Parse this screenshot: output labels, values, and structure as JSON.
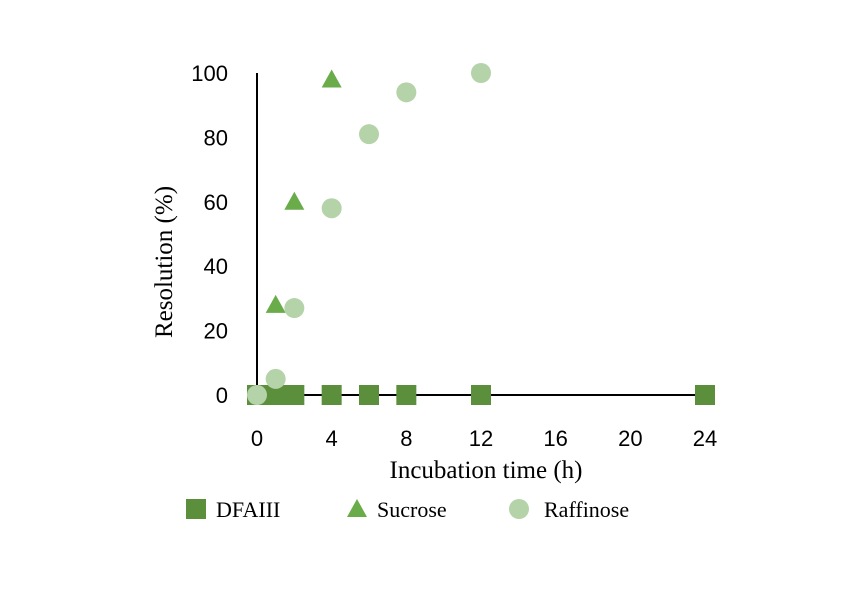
{
  "chart_data": {
    "type": "scatter",
    "xlabel": "Incubation time (h)",
    "ylabel": "Resolution (%)",
    "x_ticks": [
      "0",
      "4",
      "8",
      "12",
      "16",
      "20",
      "24"
    ],
    "y_ticks": [
      "0",
      "20",
      "40",
      "60",
      "80",
      "100"
    ],
    "xlim": [
      0,
      24
    ],
    "ylim": [
      0,
      100
    ],
    "grid": false,
    "legend_position": "bottom",
    "series": [
      {
        "name": "DFAIII",
        "marker": "square",
        "color": "#5b8f3c",
        "points": [
          [
            0,
            0
          ],
          [
            1,
            0
          ],
          [
            2,
            0
          ],
          [
            4,
            0
          ],
          [
            6,
            0
          ],
          [
            8,
            0
          ],
          [
            12,
            0
          ],
          [
            24,
            0
          ]
        ]
      },
      {
        "name": "Sucrose",
        "marker": "triangle",
        "color": "#6aab4a",
        "points": [
          [
            1,
            28
          ],
          [
            2,
            60
          ],
          [
            4,
            98
          ]
        ]
      },
      {
        "name": "Raffinose",
        "marker": "circle",
        "color": "#b5d3a8",
        "points": [
          [
            0,
            0
          ],
          [
            1,
            5
          ],
          [
            2,
            27
          ],
          [
            4,
            58
          ],
          [
            6,
            81
          ],
          [
            8,
            94
          ],
          [
            12,
            100
          ]
        ]
      }
    ]
  }
}
